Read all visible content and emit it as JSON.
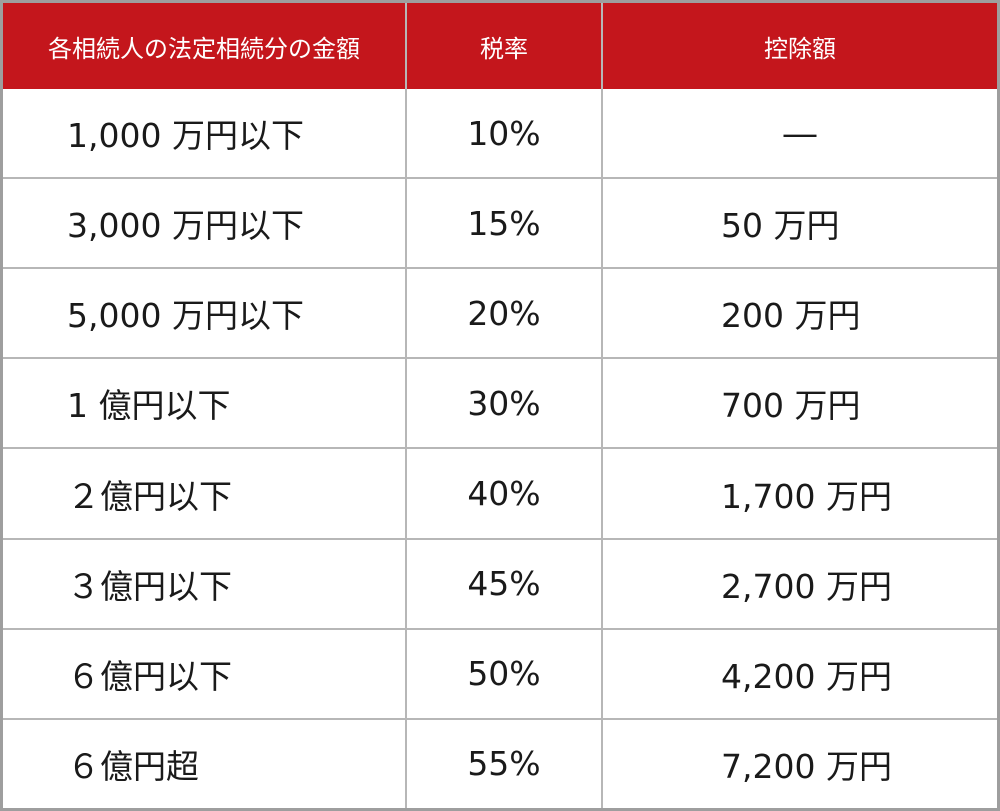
{
  "header": {
    "col_amount": "各相続人の法定相続分の金額",
    "col_rate": "税率",
    "col_deduction": "控除額"
  },
  "rows": [
    {
      "amount": "1,000 万円以下",
      "rate": "10%",
      "deduction": "―"
    },
    {
      "amount": "3,000 万円以下",
      "rate": "15%",
      "deduction": "50 万円"
    },
    {
      "amount": "5,000 万円以下",
      "rate": "20%",
      "deduction": "200 万円"
    },
    {
      "amount": "1 億円以下",
      "rate": "30%",
      "deduction": "700 万円"
    },
    {
      "amount": "２億円以下",
      "rate": "40%",
      "deduction": "1,700 万円"
    },
    {
      "amount": "３億円以下",
      "rate": "45%",
      "deduction": "2,700 万円"
    },
    {
      "amount": "６億円以下",
      "rate": "50%",
      "deduction": "4,200 万円"
    },
    {
      "amount": "６億円超",
      "rate": "55%",
      "deduction": "7,200 万円"
    }
  ],
  "colors": {
    "header_bg": "#c4161c",
    "header_text": "#ffffff",
    "border": "#b7b7b7"
  }
}
